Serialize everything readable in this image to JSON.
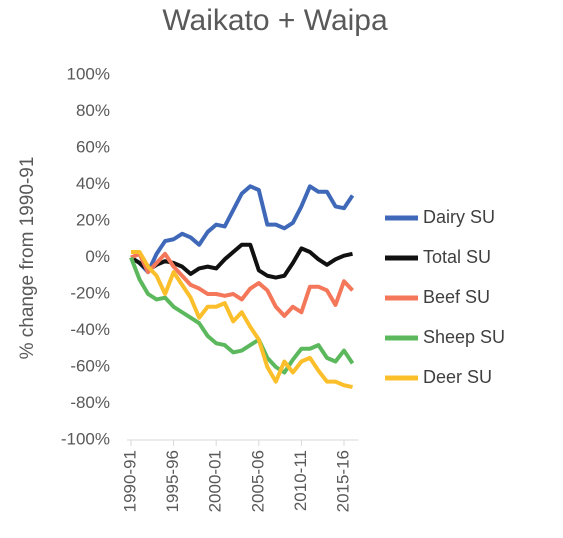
{
  "chart_data": {
    "type": "line",
    "title": "Waikato + Waipa",
    "y_label": "% change from 1990-91",
    "categories": [
      "1990-91",
      null,
      null,
      null,
      null,
      "1995-96",
      null,
      null,
      null,
      null,
      "2000-01",
      null,
      null,
      null,
      null,
      "2005-06",
      null,
      null,
      null,
      null,
      "2010-11",
      null,
      null,
      null,
      null,
      "2015-16",
      null
    ],
    "ylim": [
      -100,
      100
    ],
    "yticks": [
      {
        "value": 100,
        "label": "100%"
      },
      {
        "value": 80,
        "label": "80%"
      },
      {
        "value": 60,
        "label": "60%"
      },
      {
        "value": 40,
        "label": "40%"
      },
      {
        "value": 20,
        "label": "20%"
      },
      {
        "value": 0,
        "label": "0%"
      },
      {
        "value": -20,
        "label": "-20%"
      },
      {
        "value": -40,
        "label": "-40%"
      },
      {
        "value": -60,
        "label": "-60%"
      },
      {
        "value": -80,
        "label": "-80%"
      },
      {
        "value": -100,
        "label": "-100%"
      }
    ],
    "legend": "right",
    "series": [
      {
        "name": "Dairy SU",
        "color": "#3f69b8",
        "values": [
          0,
          -3,
          -8,
          2,
          9,
          10,
          13,
          11,
          7,
          14,
          18,
          17,
          26,
          35,
          39,
          37,
          18,
          18,
          16,
          19,
          28,
          39,
          36,
          36,
          28,
          27,
          34
        ]
      },
      {
        "name": "Total SU",
        "color": "#111111",
        "values": [
          0,
          -3,
          -7,
          -4,
          -2,
          -3,
          -5,
          -9,
          -6,
          -5,
          -6,
          -1,
          3,
          7,
          7,
          -7,
          -10,
          -11,
          -10,
          -3,
          5,
          3,
          -1,
          -4,
          -1,
          1,
          2
        ]
      },
      {
        "name": "Beef SU",
        "color": "#f4775a",
        "values": [
          0,
          2,
          -8,
          -3,
          2,
          -5,
          -10,
          -15,
          -17,
          -20,
          -20,
          -21,
          -20,
          -23,
          -17,
          -14,
          -18,
          -27,
          -32,
          -27,
          -30,
          -16,
          -16,
          -18,
          -26,
          -13,
          -18
        ]
      },
      {
        "name": "Sheep SU",
        "color": "#5cb85c",
        "values": [
          0,
          -12,
          -20,
          -23,
          -22,
          -27,
          -30,
          -33,
          -36,
          -43,
          -47,
          -48,
          -52,
          -51,
          -48,
          -45,
          -55,
          -60,
          -63,
          -56,
          -50,
          -50,
          -48,
          -55,
          -57,
          -51,
          -58
        ]
      },
      {
        "name": "Deer SU",
        "color": "#fbbf2c",
        "values": [
          3,
          3,
          -5,
          -10,
          -20,
          -8,
          -15,
          -22,
          -33,
          -27,
          -27,
          -25,
          -35,
          -30,
          -38,
          -45,
          -60,
          -68,
          -57,
          -63,
          -57,
          -55,
          -62,
          -68,
          -68,
          -70,
          -71
        ]
      }
    ]
  }
}
